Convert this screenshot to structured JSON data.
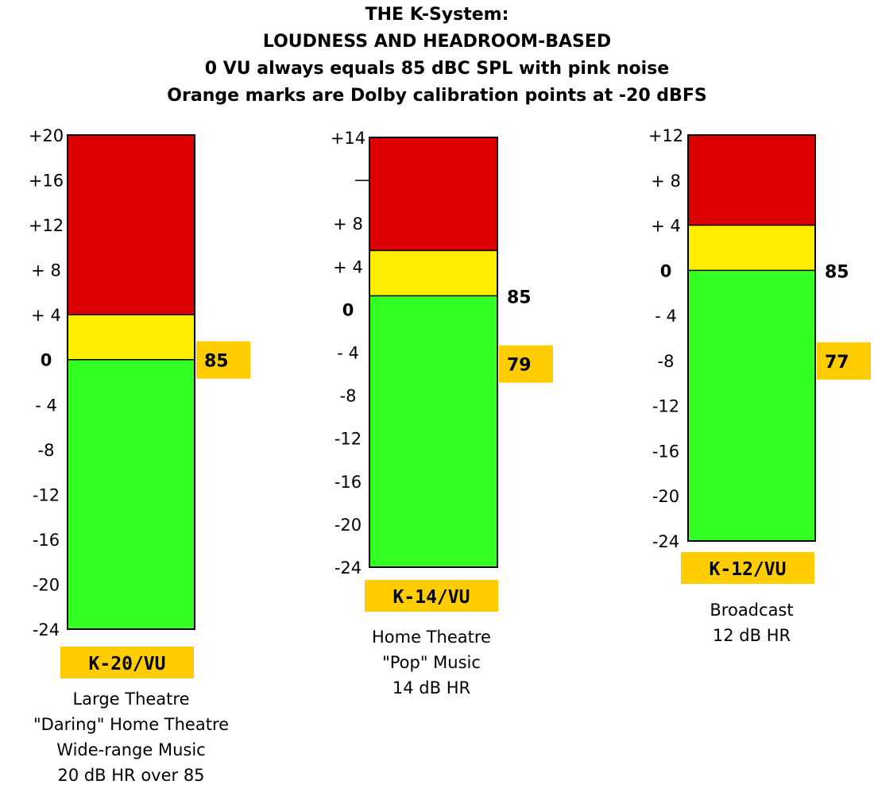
{
  "title_lines": [
    "THE K-System:",
    "LOUDNESS AND HEADROOM-BASED",
    "0 VU always equals 85 dBC SPL with pink noise",
    "Orange marks are Dolby calibration points at -20 dBFS"
  ],
  "colors": {
    "red": "#dd0000",
    "yellow": "#ffee00",
    "green": "#33ff22",
    "orange": "#ffcc00"
  },
  "meters": [
    {
      "name": "K-20/VU",
      "headroom_db": 20,
      "floor_db": -24,
      "ticks": [
        "+20",
        "+16",
        "+12",
        "+ 8",
        "+ 4",
        "0",
        "- 4",
        "-8",
        "-12",
        "-16",
        "-20",
        "-24"
      ],
      "yellow_top_db": 4,
      "zero_reference": "85",
      "calibration_label": "85",
      "calibration_db": 0,
      "description": [
        "Large Theatre",
        "\"Daring\" Home Theatre",
        "Wide-range Music",
        "20 dB HR over 85"
      ]
    },
    {
      "name": "K-14/VU",
      "headroom_db": 14,
      "floor_db": -24,
      "ticks": [
        "+14",
        "",
        "+ 8",
        "+ 4",
        "0",
        "- 4",
        "-8",
        "-12",
        "-16",
        "-20",
        "-24"
      ],
      "yellow_top_db": 4,
      "zero_reference": "85",
      "calibration_label": "79",
      "calibration_db": -6,
      "description": [
        "Home Theatre",
        "\"Pop\" Music",
        "14 dB HR"
      ]
    },
    {
      "name": "K-12/VU",
      "headroom_db": 12,
      "floor_db": -24,
      "ticks": [
        "+12",
        "+ 8",
        "+ 4",
        "0",
        "- 4",
        "-8",
        "-12",
        "-16",
        "-20",
        "-24"
      ],
      "yellow_top_db": 4,
      "zero_reference": "85",
      "calibration_label": "77",
      "calibration_db": -8,
      "description": [
        "Broadcast",
        "12 dB HR"
      ]
    }
  ]
}
